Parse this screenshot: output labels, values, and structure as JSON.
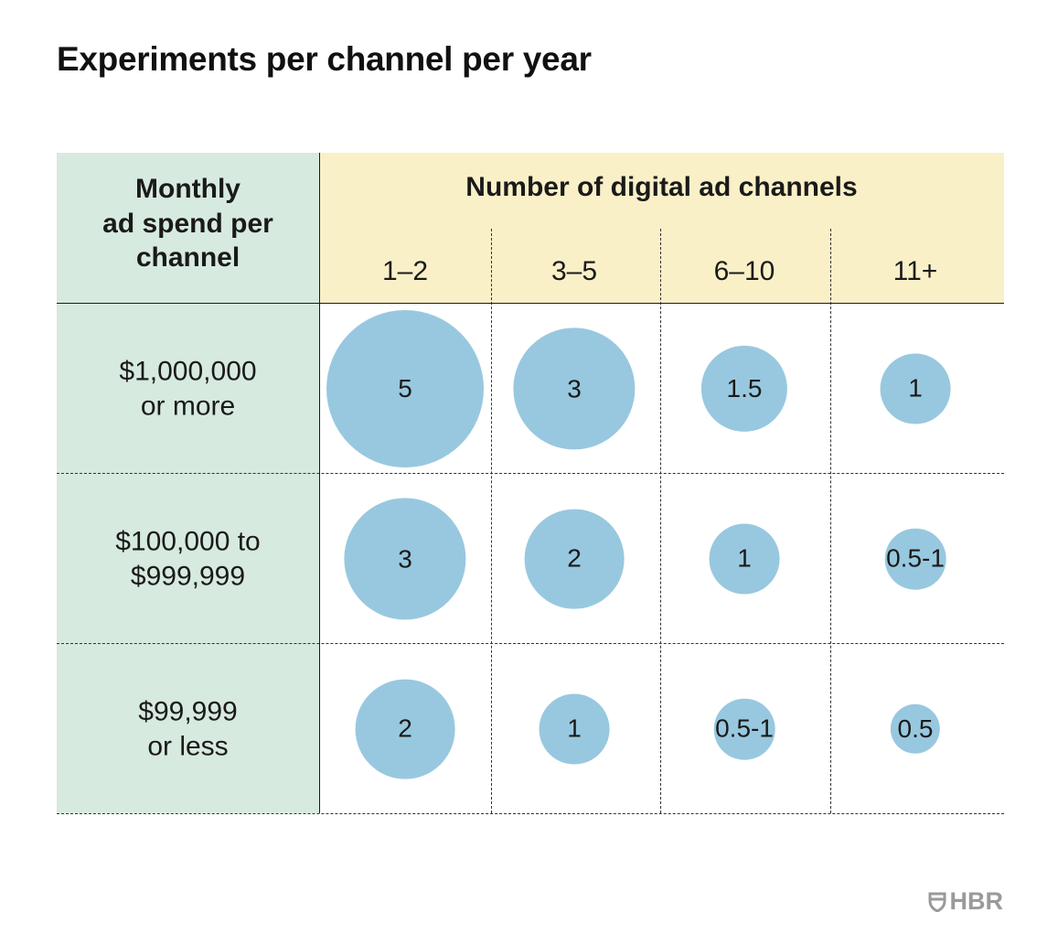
{
  "title": "Experiments per channel per year",
  "chart_data": {
    "type": "table",
    "title": "Experiments per channel per year",
    "row_header_label": "Monthly ad spend per channel",
    "row_header_lines": [
      "Monthly",
      "ad spend per",
      "channel"
    ],
    "column_group_label": "Number of digital ad channels",
    "columns": [
      "1–2",
      "3–5",
      "6–10",
      "11+"
    ],
    "rows": [
      {
        "label": "$1,000,000 or more",
        "label_lines": [
          "$1,000,000",
          "or more"
        ],
        "values": [
          5,
          3,
          1.5,
          1
        ],
        "display": [
          "5",
          "3",
          "1.5",
          "1"
        ]
      },
      {
        "label": "$100,000 to $999,999",
        "label_lines": [
          "$100,000 to",
          "$999,999"
        ],
        "values": [
          3,
          2,
          1,
          0.75
        ],
        "display": [
          "3",
          "2",
          "1",
          "0.5-1"
        ]
      },
      {
        "label": "$99,999 or less",
        "label_lines": [
          "$99,999",
          "or less"
        ],
        "values": [
          2,
          1,
          0.75,
          0.5
        ],
        "display": [
          "2",
          "1",
          "0.5-1",
          "0.5"
        ]
      }
    ],
    "encoding": "bubble area proportional to experiments per year"
  },
  "colors": {
    "bubble": "#98c8df",
    "row_header_bg": "#d7eadf",
    "column_header_bg": "#faf0c8"
  },
  "logo": {
    "text": "HBR",
    "icon": "hbr-shield-icon"
  }
}
